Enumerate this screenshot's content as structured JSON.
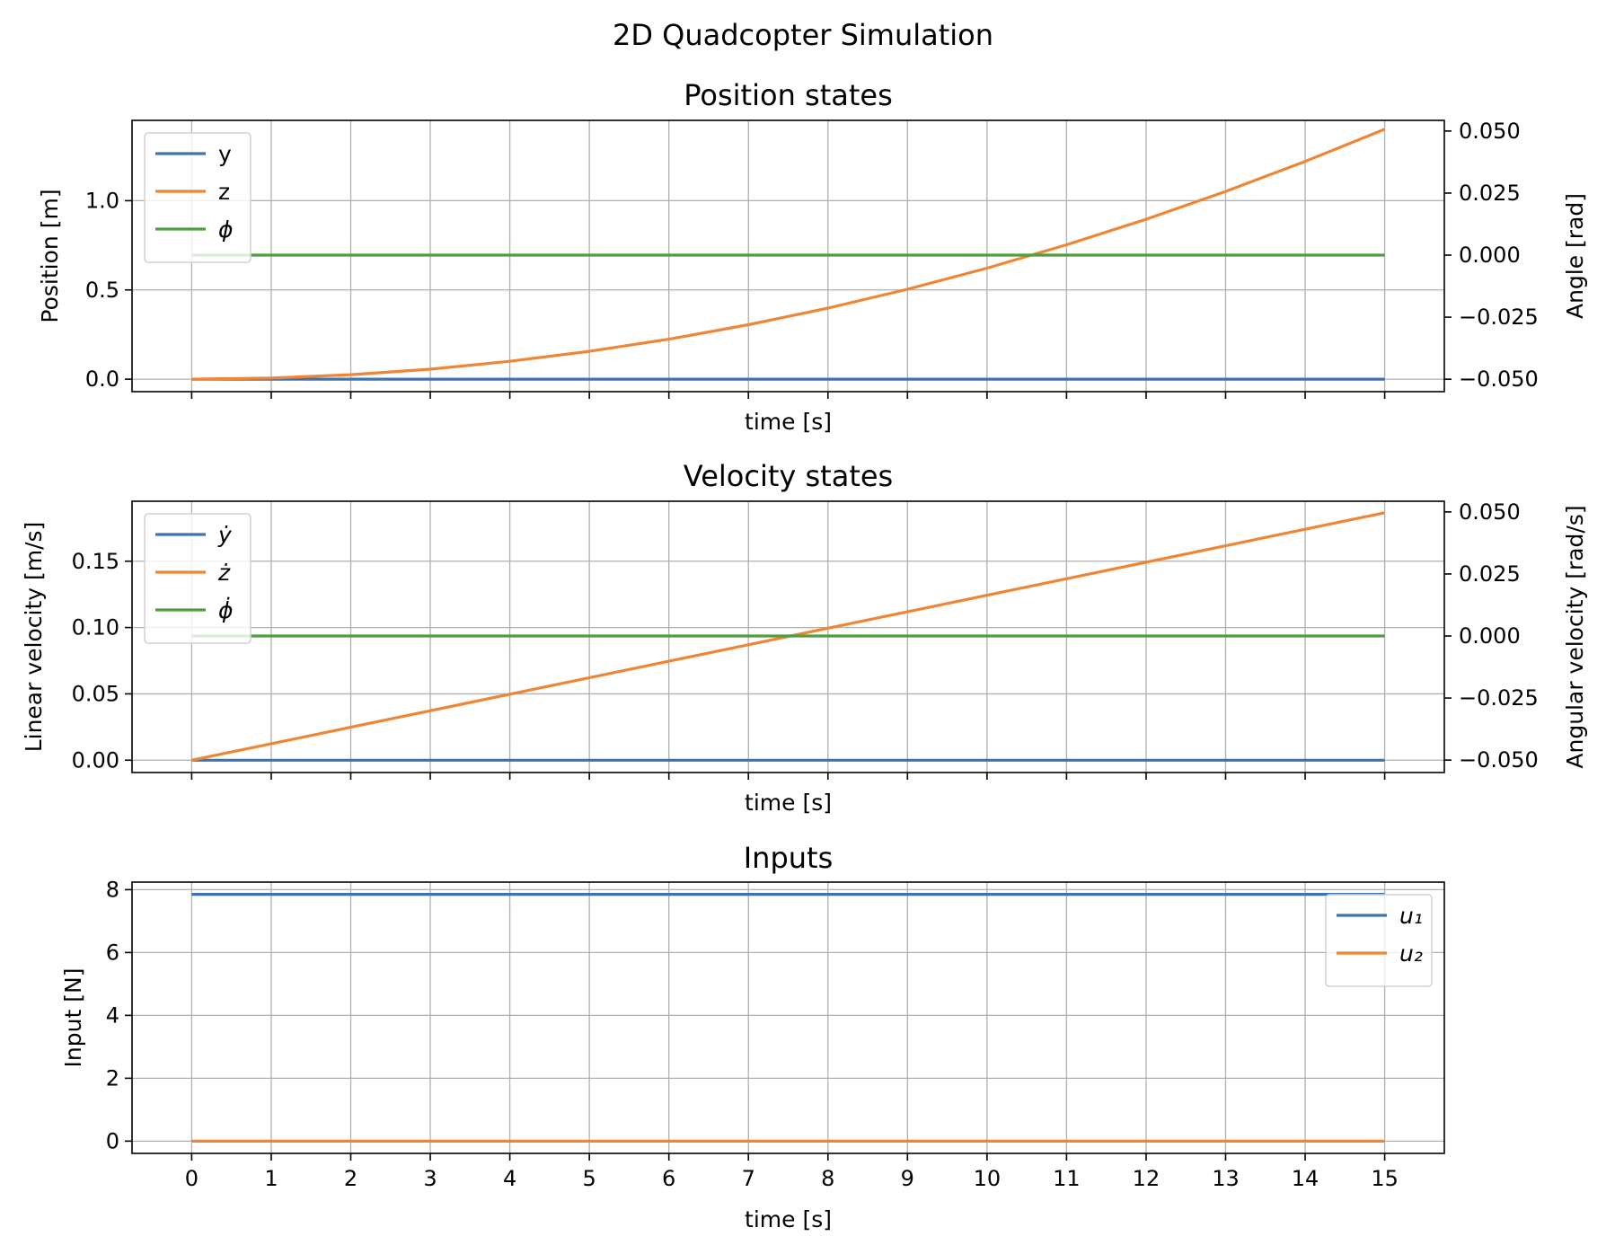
{
  "figure": {
    "suptitle": "2D Quadcopter Simulation"
  },
  "colors": {
    "blue": "#3a75b0",
    "orange": "#ee8636",
    "green": "#519e3e",
    "grid": "#b0b0b0"
  },
  "chart_data": [
    {
      "type": "line",
      "title": "Position states",
      "xlabel": "time [s]",
      "ylabel": "Position [m]",
      "ylabel_right": "Angle [rad]",
      "xlim": [
        -0.75,
        15.75
      ],
      "ylim": [
        -0.07,
        1.45
      ],
      "ylim_right": [
        -0.055,
        0.0543
      ],
      "xticks": [
        0,
        1,
        2,
        3,
        4,
        5,
        6,
        7,
        8,
        9,
        10,
        11,
        12,
        13,
        14,
        15
      ],
      "show_xticklabels": false,
      "yticks": [
        0.0,
        0.5,
        1.0
      ],
      "yticklabels": [
        "0.0",
        "0.5",
        "1.0"
      ],
      "yticks_right": [
        -0.05,
        -0.025,
        0.0,
        0.025,
        0.05
      ],
      "yticklabels_right": [
        "−0.050",
        "−0.025",
        "0.000",
        "0.025",
        "0.050"
      ],
      "grid": true,
      "legend_position": "upper left",
      "series": [
        {
          "name": "y",
          "axis": "left",
          "color": "blue",
          "x": [
            0,
            1,
            2,
            3,
            4,
            5,
            6,
            7,
            8,
            9,
            10,
            11,
            12,
            13,
            14,
            15
          ],
          "values": [
            0,
            0,
            0,
            0,
            0,
            0,
            0,
            0,
            0,
            0,
            0,
            0,
            0,
            0,
            0,
            0
          ]
        },
        {
          "name": "z",
          "axis": "left",
          "color": "orange",
          "x": [
            0,
            1,
            2,
            3,
            4,
            5,
            6,
            7,
            8,
            9,
            10,
            11,
            12,
            13,
            14,
            15
          ],
          "values": [
            0,
            0.006,
            0.025,
            0.056,
            0.1,
            0.156,
            0.224,
            0.305,
            0.398,
            0.504,
            0.622,
            0.753,
            0.896,
            1.052,
            1.22,
            1.4
          ]
        },
        {
          "name": "ϕ",
          "axis": "right",
          "color": "green",
          "x": [
            0,
            15
          ],
          "values": [
            0,
            0
          ]
        }
      ]
    },
    {
      "type": "line",
      "title": "Velocity states",
      "xlabel": "time [s]",
      "ylabel": "Linear velocity [m/s]",
      "ylabel_right": "Angular velocity [rad/s]",
      "xlim": [
        -0.75,
        15.75
      ],
      "ylim": [
        -0.0093,
        0.1952
      ],
      "ylim_right": [
        -0.055,
        0.0543
      ],
      "xticks": [
        0,
        1,
        2,
        3,
        4,
        5,
        6,
        7,
        8,
        9,
        10,
        11,
        12,
        13,
        14,
        15
      ],
      "show_xticklabels": false,
      "yticks": [
        0.0,
        0.05,
        0.1,
        0.15
      ],
      "yticklabels": [
        "0.00",
        "0.05",
        "0.10",
        "0.15"
      ],
      "yticks_right": [
        -0.05,
        -0.025,
        0.0,
        0.025,
        0.05
      ],
      "yticklabels_right": [
        "−0.050",
        "−0.025",
        "0.000",
        "0.025",
        "0.050"
      ],
      "grid": true,
      "legend_position": "upper left",
      "series": [
        {
          "name": "ẏ",
          "axis": "left",
          "color": "blue",
          "x": [
            0,
            15
          ],
          "values": [
            0,
            0
          ]
        },
        {
          "name": "ż",
          "axis": "left",
          "color": "orange",
          "x": [
            0,
            15
          ],
          "values": [
            0,
            0.1865
          ]
        },
        {
          "name": "ϕ̇",
          "axis": "right",
          "color": "green",
          "x": [
            0,
            15
          ],
          "values": [
            0,
            0
          ]
        }
      ]
    },
    {
      "type": "line",
      "title": "Inputs",
      "xlabel": "time [s]",
      "ylabel": "Input [N]",
      "xlim": [
        -0.75,
        15.75
      ],
      "ylim": [
        -0.39,
        8.24
      ],
      "xticks": [
        0,
        1,
        2,
        3,
        4,
        5,
        6,
        7,
        8,
        9,
        10,
        11,
        12,
        13,
        14,
        15
      ],
      "xticklabels": [
        "0",
        "1",
        "2",
        "3",
        "4",
        "5",
        "6",
        "7",
        "8",
        "9",
        "10",
        "11",
        "12",
        "13",
        "14",
        "15"
      ],
      "show_xticklabels": true,
      "yticks": [
        0,
        2,
        4,
        6,
        8
      ],
      "yticklabels": [
        "0",
        "2",
        "4",
        "6",
        "8"
      ],
      "grid": true,
      "legend_position": "upper right",
      "series": [
        {
          "name": "u₁",
          "axis": "left",
          "color": "blue",
          "x": [
            0,
            15
          ],
          "values": [
            7.85,
            7.85
          ]
        },
        {
          "name": "u₂",
          "axis": "left",
          "color": "orange",
          "x": [
            0,
            15
          ],
          "values": [
            0,
            0
          ]
        }
      ]
    }
  ]
}
